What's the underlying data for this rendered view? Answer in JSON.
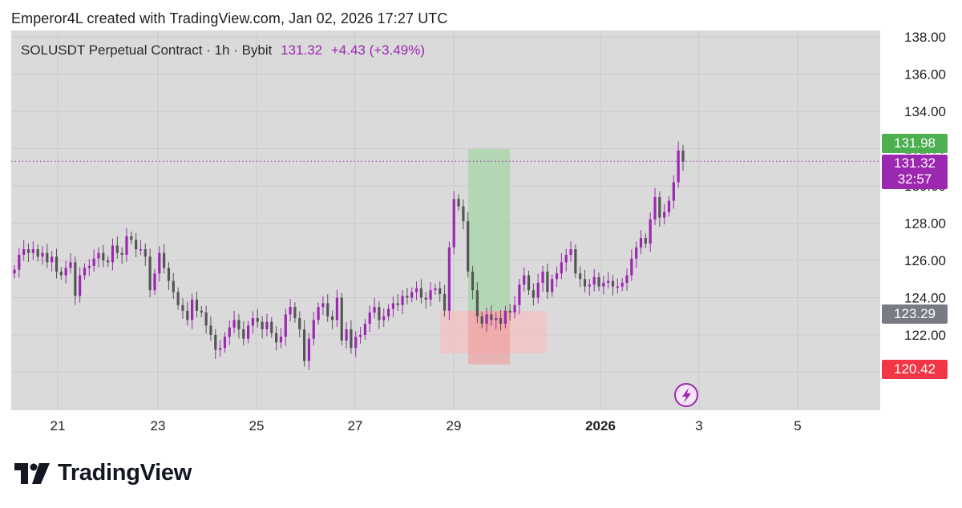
{
  "header": {
    "text": "Emperor4L created with TradingView.com, Jan 02, 2026 17:27 UTC"
  },
  "legend": {
    "symbol": "SOLUSDT Perpetual Contract · 1h · Bybit",
    "price": "131.32",
    "change": "+4.43 (+3.49%)"
  },
  "badges": {
    "target": {
      "value": "131.98",
      "color": "#4caf50"
    },
    "last": {
      "value": "131.32",
      "countdown": "32:57",
      "color": "#9c27b0"
    },
    "entry": {
      "value": "123.29",
      "color": "#787b86"
    },
    "stop": {
      "value": "120.42",
      "color": "#f23645"
    }
  },
  "brand": {
    "name": "TradingView"
  },
  "chart_data": {
    "type": "candlestick",
    "y_ticks": [
      "138.00",
      "136.00",
      "134.00",
      "132.00",
      "130.00",
      "128.00",
      "126.00",
      "124.00",
      "122.00",
      "120.00"
    ],
    "x_ticks": [
      "21",
      "23",
      "25",
      "27",
      "29",
      "2026",
      "3",
      "5"
    ],
    "ylim": [
      119.5,
      138.4
    ],
    "close_series": [
      125.5,
      126.3,
      126.6,
      126.4,
      126.6,
      126.2,
      126.4,
      125.9,
      126.2,
      125.4,
      125.2,
      125.6,
      125.9,
      124.1,
      125.2,
      125.6,
      125.7,
      126.1,
      126.4,
      126.0,
      125.9,
      126.8,
      126.4,
      126.3,
      127.3,
      127.1,
      126.6,
      126.6,
      126.2,
      124.4,
      125.3,
      126.4,
      125.6,
      124.9,
      124.3,
      123.6,
      123.3,
      122.8,
      123.9,
      123.3,
      123.2,
      122.5,
      122.0,
      121.2,
      121.3,
      121.9,
      122.4,
      122.8,
      122.3,
      121.8,
      122.5,
      122.9,
      122.7,
      122.3,
      122.7,
      122.1,
      121.6,
      121.9,
      123.1,
      123.5,
      122.9,
      122.3,
      120.6,
      121.8,
      122.8,
      123.5,
      123.7,
      123.0,
      122.8,
      124.0,
      121.7,
      122.3,
      121.3,
      121.9,
      122.0,
      122.6,
      123.2,
      123.5,
      122.8,
      123.0,
      123.4,
      123.7,
      123.6,
      124.1,
      124.0,
      124.3,
      124.5,
      124.0,
      123.9,
      124.4,
      124.5,
      124.2,
      123.3,
      126.7,
      129.3,
      128.9,
      128.1,
      125.4,
      124.4,
      123.0,
      122.6,
      123.1,
      122.8,
      122.9,
      122.6,
      123.3,
      123.2,
      123.6,
      124.7,
      125.2,
      124.4,
      124.0,
      124.8,
      125.4,
      124.3,
      125.0,
      125.3,
      125.9,
      126.3,
      126.6,
      125.3,
      125.0,
      124.6,
      124.7,
      125.1,
      124.6,
      124.8,
      124.9,
      124.6,
      124.6,
      124.8,
      125.2,
      126.1,
      126.7,
      127.2,
      126.9,
      128.2,
      129.4,
      128.3,
      128.6,
      129.2,
      130.2,
      131.9,
      131.3
    ],
    "risk_reward": {
      "entry": 123.29,
      "target": 131.98,
      "stop": 120.42
    }
  }
}
